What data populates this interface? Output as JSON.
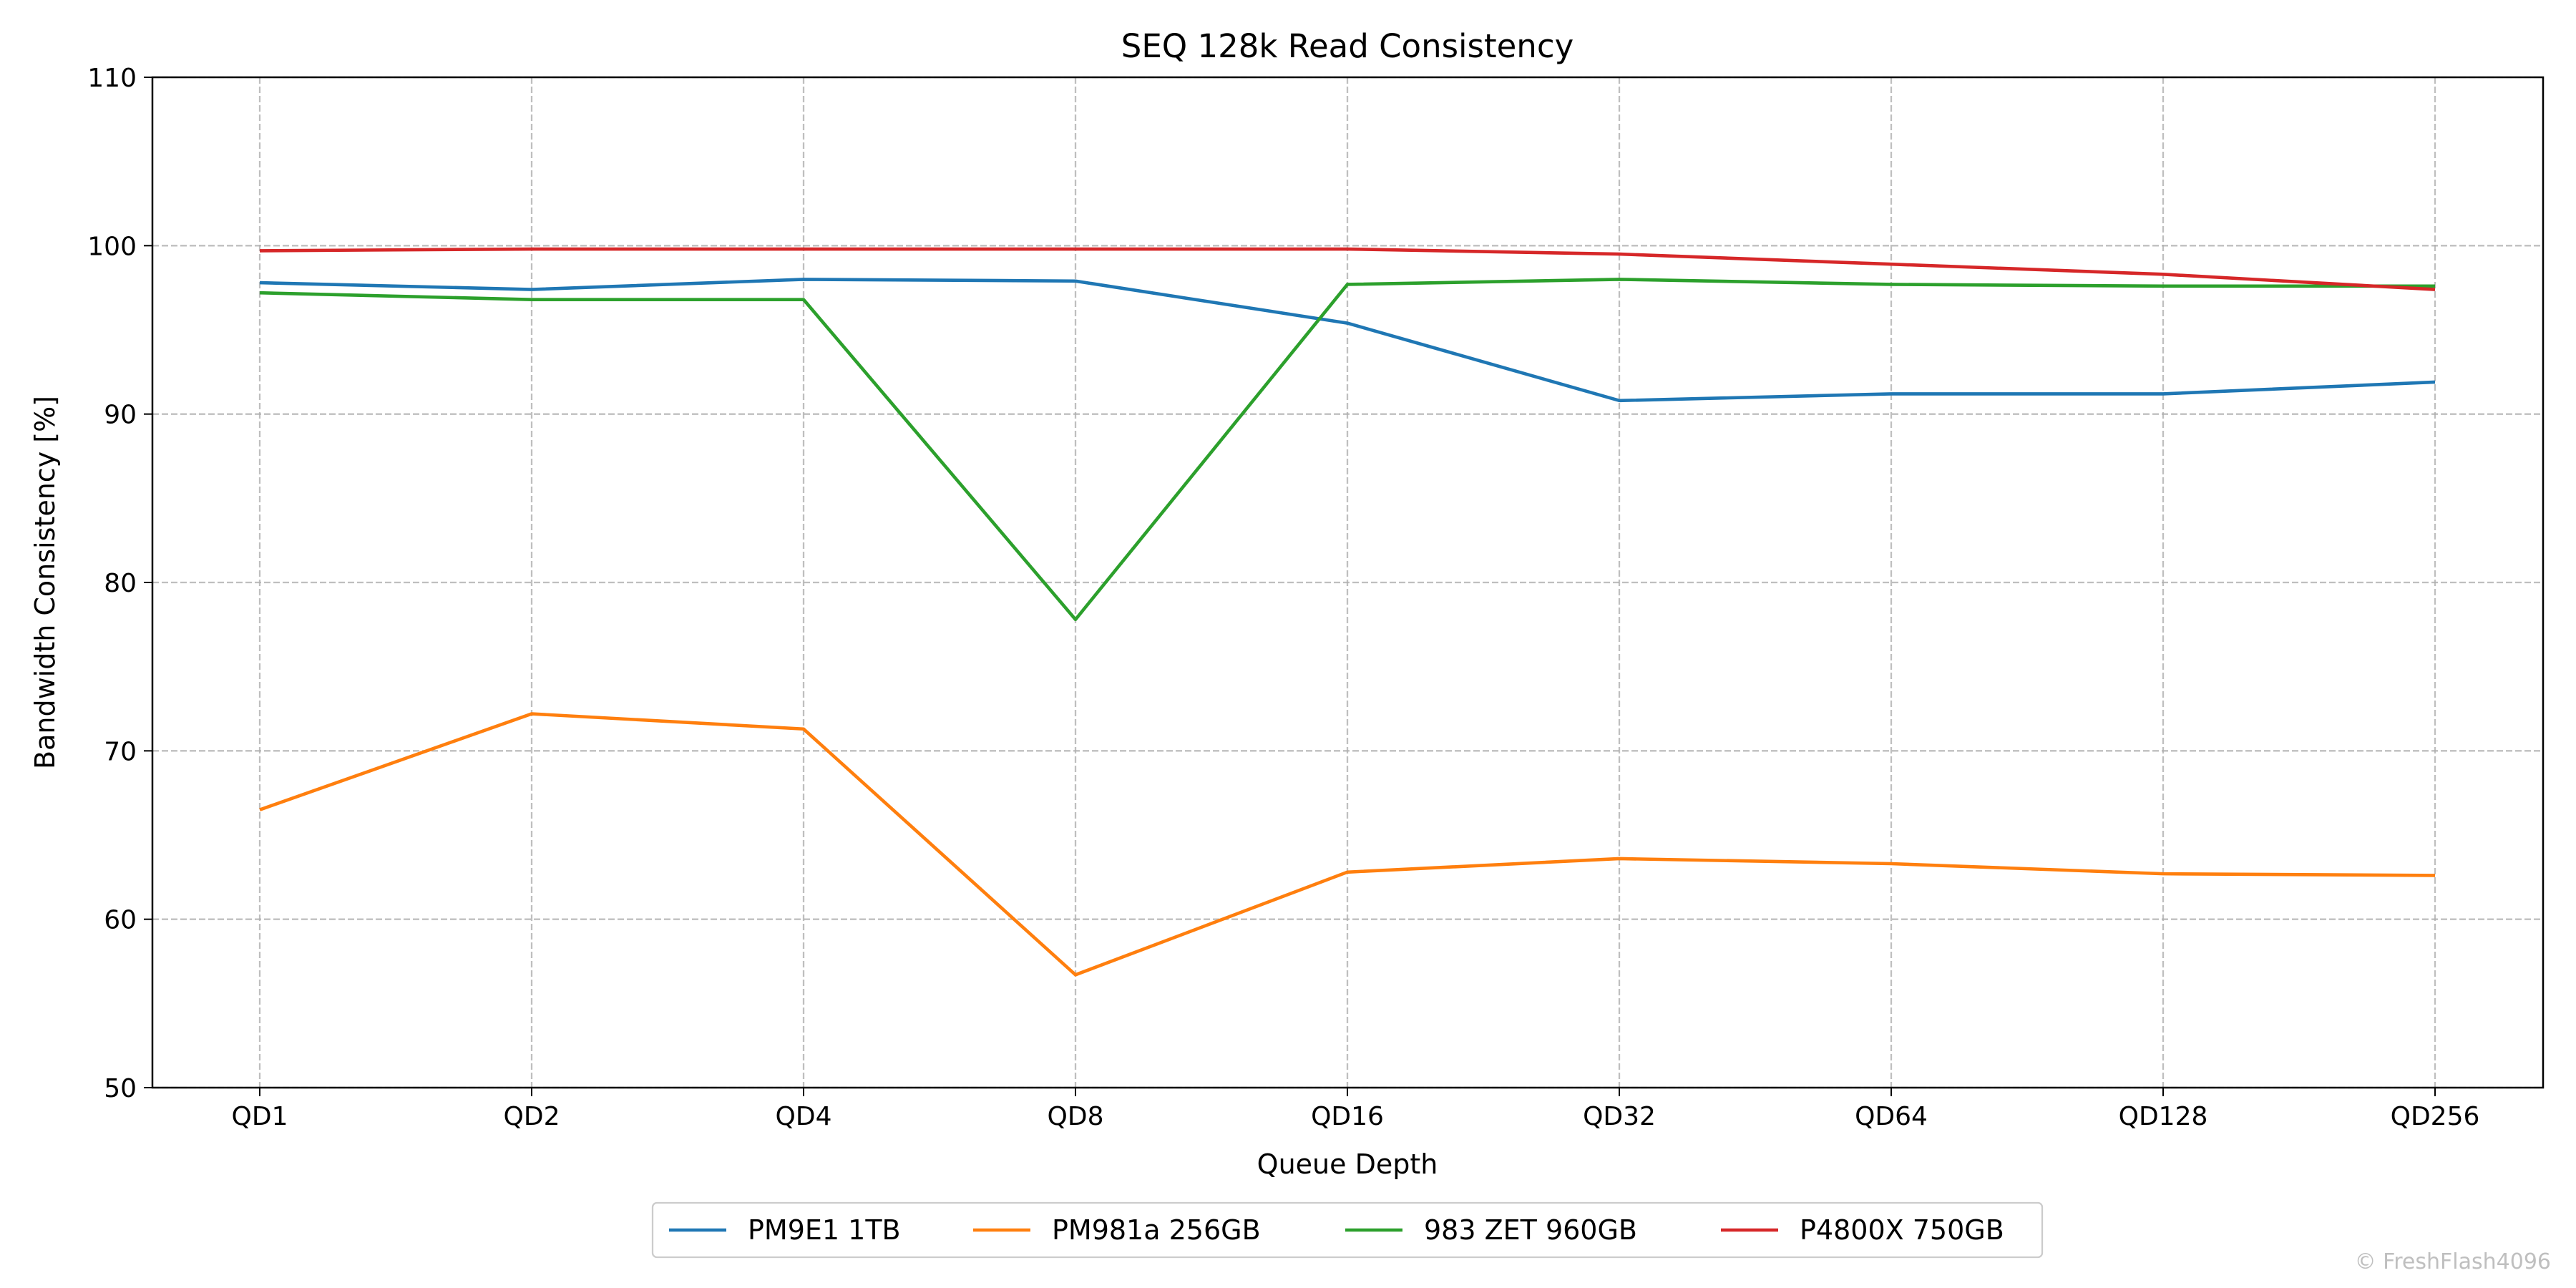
{
  "chart_data": {
    "type": "line",
    "title": "SEQ 128k Read Consistency",
    "xlabel": "Queue Depth",
    "ylabel": "Bandwidth Consistency [%]",
    "categories": [
      "QD1",
      "QD2",
      "QD4",
      "QD8",
      "QD16",
      "QD32",
      "QD64",
      "QD128",
      "QD256"
    ],
    "ylim": [
      50,
      110
    ],
    "yticks": [
      50,
      60,
      70,
      80,
      90,
      100,
      110
    ],
    "grid": true,
    "legend_position": "bottom-center",
    "series": [
      {
        "name": "PM9E1 1TB",
        "color": "#1f77b4",
        "values": [
          97.8,
          97.4,
          98.0,
          97.9,
          95.4,
          90.8,
          91.2,
          91.2,
          91.9
        ]
      },
      {
        "name": "PM981a 256GB",
        "color": "#ff7f0e",
        "values": [
          66.5,
          72.2,
          71.3,
          56.7,
          62.8,
          63.6,
          63.3,
          62.7,
          62.6
        ]
      },
      {
        "name": "983 ZET 960GB",
        "color": "#2ca02c",
        "values": [
          97.2,
          96.8,
          96.8,
          77.8,
          97.7,
          98.0,
          97.7,
          97.6,
          97.6
        ]
      },
      {
        "name": "P4800X 750GB",
        "color": "#d62728",
        "values": [
          99.7,
          99.8,
          99.8,
          99.8,
          99.8,
          99.5,
          98.9,
          98.3,
          97.4
        ]
      }
    ]
  },
  "watermark": "© FreshFlash4096"
}
